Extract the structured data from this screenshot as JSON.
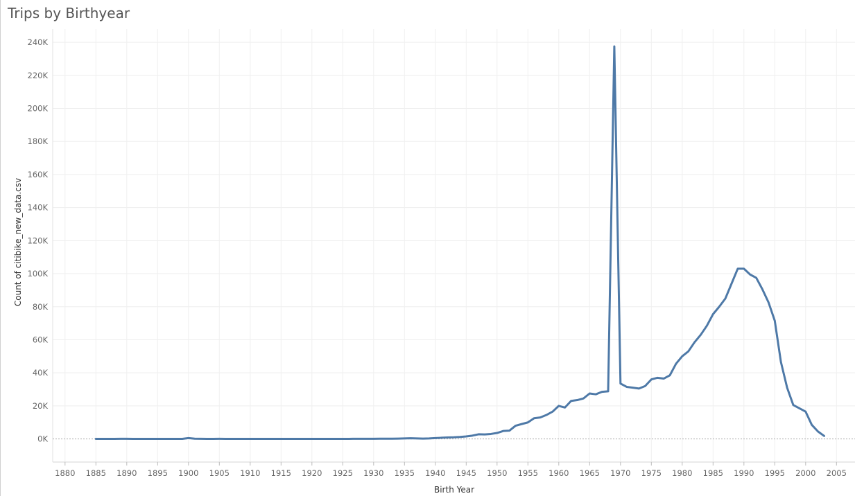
{
  "chart_data": {
    "type": "line",
    "title": "Trips by Birthyear",
    "xlabel": "Birth Year",
    "ylabel": "Count of citibike_new_data.csv",
    "xlim": [
      1878,
      2008
    ],
    "ylim": [
      -14000,
      248000
    ],
    "x_ticks": [
      1880,
      1885,
      1890,
      1895,
      1900,
      1905,
      1910,
      1915,
      1920,
      1925,
      1930,
      1935,
      1940,
      1945,
      1950,
      1955,
      1960,
      1965,
      1970,
      1975,
      1980,
      1985,
      1990,
      1995,
      2000,
      2005
    ],
    "y_ticks": [
      {
        "value": 0,
        "label": "0K"
      },
      {
        "value": 20000,
        "label": "20K"
      },
      {
        "value": 40000,
        "label": "40K"
      },
      {
        "value": 60000,
        "label": "60K"
      },
      {
        "value": 80000,
        "label": "80K"
      },
      {
        "value": 100000,
        "label": "100K"
      },
      {
        "value": 120000,
        "label": "120K"
      },
      {
        "value": 140000,
        "label": "140K"
      },
      {
        "value": 160000,
        "label": "160K"
      },
      {
        "value": 180000,
        "label": "180K"
      },
      {
        "value": 200000,
        "label": "200K"
      },
      {
        "value": 220000,
        "label": "220K"
      },
      {
        "value": 240000,
        "label": "240K"
      }
    ],
    "grid": true,
    "line_color": "#4e79a7",
    "series": [
      {
        "x": [
          1885,
          1886,
          1887,
          1888,
          1889,
          1890,
          1891,
          1892,
          1893,
          1894,
          1895,
          1896,
          1897,
          1898,
          1899,
          1900,
          1901,
          1902,
          1903,
          1904,
          1905,
          1906,
          1907,
          1908,
          1909,
          1910,
          1911,
          1912,
          1913,
          1914,
          1915,
          1916,
          1917,
          1918,
          1919,
          1920,
          1921,
          1922,
          1923,
          1924,
          1925,
          1926,
          1927,
          1928,
          1929,
          1930,
          1931,
          1932,
          1933,
          1934,
          1935,
          1936,
          1937,
          1938,
          1939,
          1940,
          1941,
          1942,
          1943,
          1944,
          1945,
          1946,
          1947,
          1948,
          1949,
          1950,
          1951,
          1952,
          1953,
          1954,
          1955,
          1956,
          1957,
          1958,
          1959,
          1960,
          1961,
          1962,
          1963,
          1964,
          1965,
          1966,
          1967,
          1968,
          1969,
          1970,
          1971,
          1972,
          1973,
          1974,
          1975,
          1976,
          1977,
          1978,
          1979,
          1980,
          1981,
          1982,
          1983,
          1984,
          1985,
          1986,
          1987,
          1988,
          1989,
          1990,
          1991,
          1992,
          1993,
          1994,
          1995,
          1996,
          1997,
          1998,
          1999,
          2000,
          2001,
          2002,
          2003
        ],
        "values": [
          50,
          30,
          20,
          60,
          80,
          100,
          60,
          40,
          40,
          40,
          40,
          30,
          40,
          50,
          60,
          500,
          150,
          80,
          60,
          60,
          80,
          60,
          60,
          50,
          40,
          50,
          50,
          60,
          40,
          30,
          40,
          50,
          60,
          50,
          60,
          60,
          50,
          50,
          50,
          60,
          70,
          60,
          80,
          90,
          100,
          100,
          150,
          130,
          130,
          200,
          300,
          400,
          300,
          200,
          300,
          500,
          700,
          900,
          1000,
          1200,
          1500,
          2000,
          2800,
          2700,
          3000,
          3600,
          4800,
          5000,
          8000,
          9000,
          10000,
          12500,
          13000,
          14500,
          16500,
          20000,
          19000,
          23000,
          23500,
          24500,
          27500,
          27000,
          28500,
          28800,
          237500,
          33500,
          31500,
          31000,
          30500,
          32000,
          36000,
          37000,
          36500,
          38500,
          45500,
          50000,
          53000,
          58500,
          63000,
          68500,
          75500,
          80000,
          85000,
          94000,
          103000,
          103000,
          99500,
          97500,
          90500,
          82500,
          71500,
          46500,
          31000,
          20500,
          18500,
          16500,
          8500,
          4500,
          1800
        ]
      }
    ]
  }
}
